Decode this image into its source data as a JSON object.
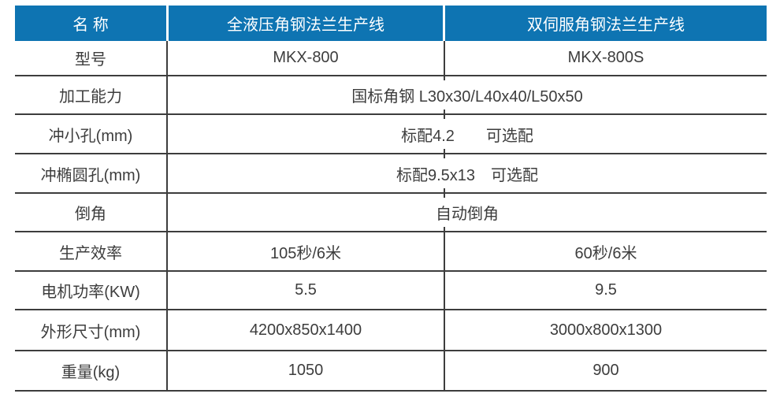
{
  "colors": {
    "accent": "#0e74b2",
    "rule": "#3d3d3d",
    "header_text": "#ffffff",
    "body_text": "#3d3d3d",
    "background": "#ffffff"
  },
  "table": {
    "header": {
      "col1": "名 称",
      "col2": "全液压角钢法兰生产线",
      "col3": "双伺服角钢法兰生产线"
    },
    "rows": [
      {
        "label": "型号",
        "type": "split",
        "col2": "MKX-800",
        "col3": "MKX-800S"
      },
      {
        "label": "加工能力",
        "type": "merged",
        "value": "国标角钢 L30x30/L40x40/L50x50"
      },
      {
        "label": "冲小孔(mm)",
        "type": "merged",
        "value": "标配4.2　　可选配"
      },
      {
        "label": "冲椭圆孔(mm)",
        "type": "merged",
        "value": "标配9.5x13　可选配"
      },
      {
        "label": "倒角",
        "type": "merged",
        "value": "自动倒角"
      },
      {
        "label": "生产效率",
        "type": "split",
        "col2": "105秒/6米",
        "col3": "60秒/6米"
      },
      {
        "label": "电机功率(KW)",
        "type": "split",
        "col2": "5.5",
        "col3": "9.5"
      },
      {
        "label": "外形尺寸(mm)",
        "type": "split",
        "col2": "4200x850x1400",
        "col3": "3000x800x1300"
      },
      {
        "label": "重量(kg)",
        "type": "split",
        "col2": "1050",
        "col3": "900"
      }
    ]
  }
}
